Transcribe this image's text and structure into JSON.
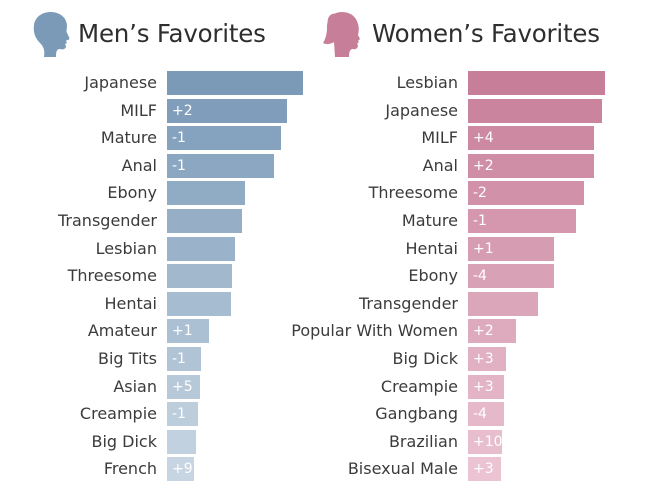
{
  "chart_data": [
    {
      "type": "bar",
      "title": "Men’s Favorites",
      "icon": "male-head-silhouette-icon",
      "color_top": "#7a9ab8",
      "color_bottom": "#c7d5e2",
      "xlim": [
        0,
        100
      ],
      "categories": [
        "Japanese",
        "MILF",
        "Mature",
        "Anal",
        "Ebony",
        "Transgender",
        "Lesbian",
        "Threesome",
        "Hentai",
        "Amateur",
        "Big Tits",
        "Asian",
        "Creampie",
        "Big Dick",
        "French"
      ],
      "values": [
        100,
        88,
        84,
        79,
        57,
        55,
        50,
        48,
        47,
        31,
        25,
        24,
        23,
        21,
        20
      ],
      "rank_changes": [
        "",
        "+2",
        "-1",
        "-1",
        "",
        "",
        "",
        "",
        "",
        "+1",
        "-1",
        "+5",
        "-1",
        "",
        "+9"
      ]
    },
    {
      "type": "bar",
      "title": "Women’s Favorites",
      "icon": "female-head-silhouette-icon",
      "color_top": "#c77f99",
      "color_bottom": "#ebc3d2",
      "xlim": [
        0,
        100
      ],
      "categories": [
        "Lesbian",
        "Japanese",
        "MILF",
        "Anal",
        "Threesome",
        "Mature",
        "Hentai",
        "Ebony",
        "Transgender",
        "Popular With Women",
        "Big Dick",
        "Creampie",
        "Gangbang",
        "Brazilian",
        "Bisexual Male"
      ],
      "values": [
        100,
        98,
        92,
        92,
        85,
        79,
        63,
        63,
        51,
        35,
        28,
        26,
        26,
        25,
        24
      ],
      "rank_changes": [
        "",
        "",
        "+4",
        "+2",
        "-2",
        "-1",
        "+1",
        "-4",
        "",
        "+2",
        "+3",
        "+3",
        "-4",
        "+10",
        "+3"
      ]
    }
  ]
}
